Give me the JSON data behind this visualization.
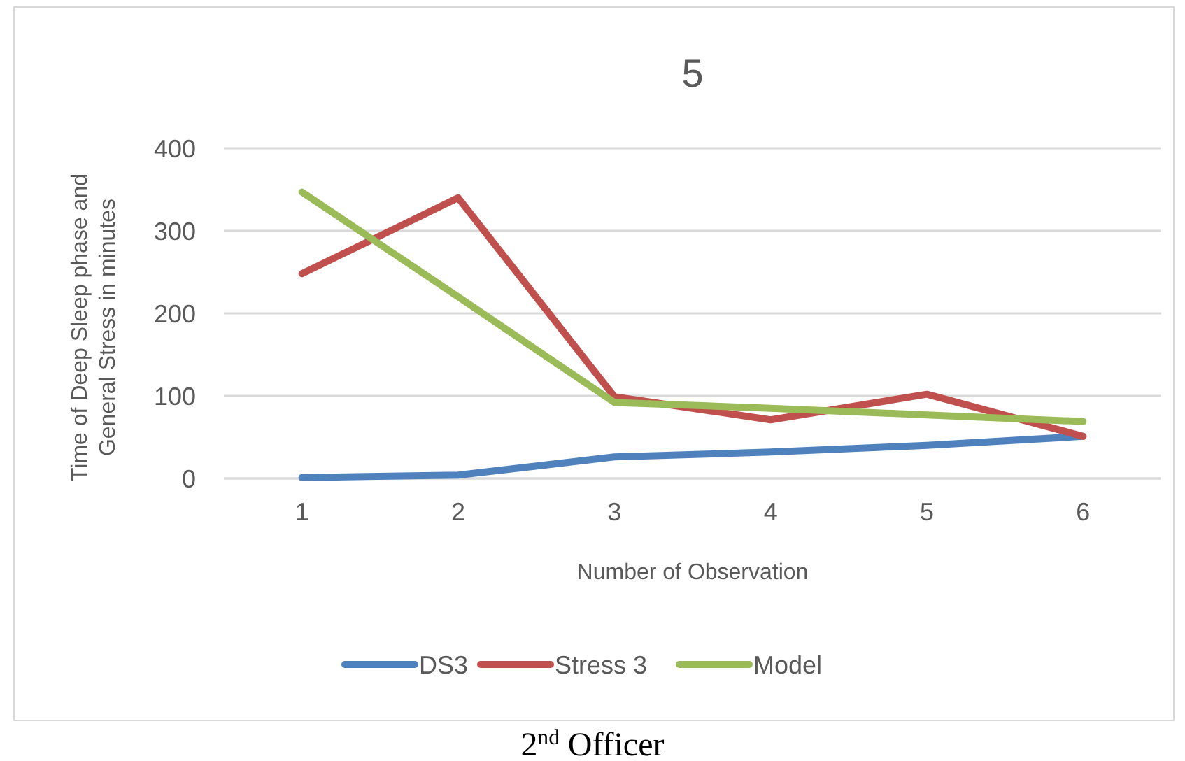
{
  "chart_data": {
    "type": "line",
    "title": "5",
    "xlabel": "Number of Observation",
    "ylabel": "Time of Deep Sleep phase and General Stress in minutes",
    "categories": [
      "1",
      "2",
      "3",
      "4",
      "5",
      "6"
    ],
    "series": [
      {
        "name": "DS3",
        "color": "#4f81bd",
        "values": [
          1,
          4,
          26,
          32,
          40,
          51
        ]
      },
      {
        "name": "Stress 3",
        "color": "#c0504d",
        "values": [
          248,
          340,
          99,
          71,
          102,
          51
        ]
      },
      {
        "name": "Model",
        "color": "#9bbb59",
        "values": [
          347,
          220,
          92,
          85,
          77,
          69
        ]
      }
    ],
    "ylim": [
      0,
      400
    ],
    "yticks": [
      0,
      100,
      200,
      300,
      400
    ],
    "grid": "y",
    "legend": "bottom",
    "marker": "none",
    "line_style": "solid",
    "annotations": [
      "2$^{nd}$ Officer"
    ]
  }
}
